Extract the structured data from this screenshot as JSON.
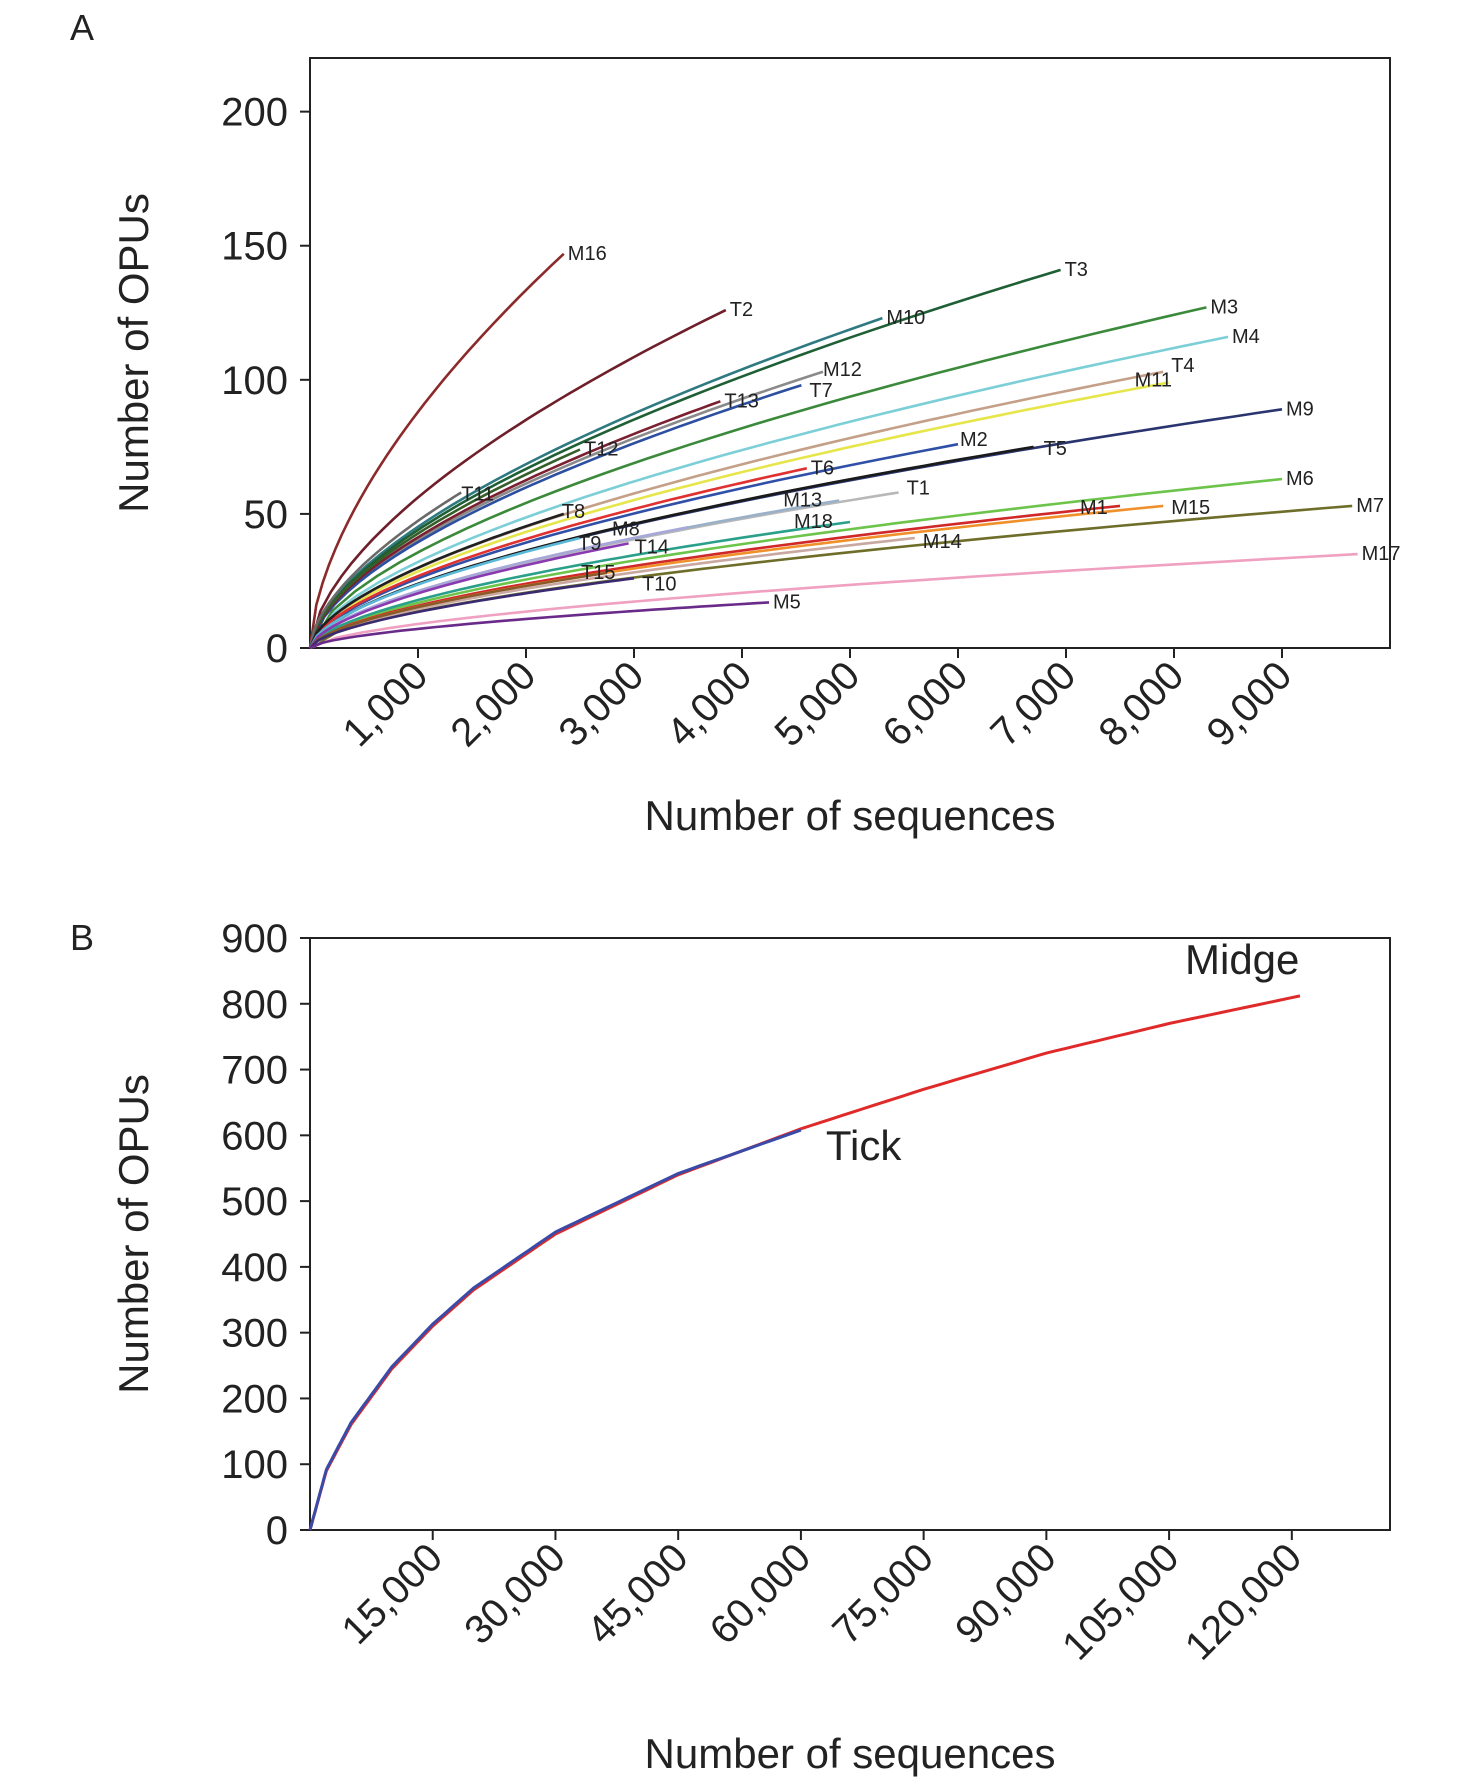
{
  "chart_data": [
    {
      "panel": "A",
      "type": "line",
      "xlabel": "Number of sequences",
      "ylabel": "Number of OPUs",
      "xlim": [
        0,
        10000
      ],
      "ylim": [
        0,
        220
      ],
      "xticks": [
        1000,
        2000,
        3000,
        4000,
        5000,
        6000,
        7000,
        8000,
        9000
      ],
      "xtick_labels": [
        "1,000",
        "2,000",
        "3,000",
        "4,000",
        "5,000",
        "6,000",
        "7,000",
        "8,000",
        "9,000"
      ],
      "yticks": [
        0,
        50,
        100,
        150,
        200
      ],
      "ytick_labels": [
        "0",
        "50",
        "100",
        "150",
        "200"
      ],
      "grid": false,
      "series": [
        {
          "name": "M16",
          "x_end": 2350,
          "y_end": 147,
          "color": "#8b2a2a"
        },
        {
          "name": "T2",
          "x_end": 3850,
          "y_end": 126,
          "color": "#6e1f2a"
        },
        {
          "name": "M10",
          "x_end": 5300,
          "y_end": 123,
          "color": "#2e7a80"
        },
        {
          "name": "T3",
          "x_end": 6950,
          "y_end": 141,
          "color": "#1f5f35"
        },
        {
          "name": "M3",
          "x_end": 8300,
          "y_end": 127,
          "color": "#3b8a3b"
        },
        {
          "name": "M4",
          "x_end": 8500,
          "y_end": 116,
          "color": "#7ccfd6"
        },
        {
          "name": "M12",
          "x_end": 4750,
          "y_end": 103,
          "color": "#8a8a8a"
        },
        {
          "name": "T7",
          "x_end": 4550,
          "y_end": 98,
          "color": "#2c4fa0"
        },
        {
          "name": "T13",
          "x_end": 3800,
          "y_end": 92,
          "color": "#7a2030"
        },
        {
          "name": "M11",
          "x_end": 7950,
          "y_end": 99,
          "color": "#e6e64a"
        },
        {
          "name": "T4",
          "x_end": 7900,
          "y_end": 103,
          "color": "#c4a088"
        },
        {
          "name": "M9",
          "x_end": 9000,
          "y_end": 89,
          "color": "#2a3570"
        },
        {
          "name": "M2",
          "x_end": 6000,
          "y_end": 76,
          "color": "#3050a8"
        },
        {
          "name": "T5",
          "x_end": 6700,
          "y_end": 75,
          "color": "#1a1a1a"
        },
        {
          "name": "T12",
          "x_end": 2500,
          "y_end": 74,
          "color": "#355f2a"
        },
        {
          "name": "T6",
          "x_end": 4600,
          "y_end": 67,
          "color": "#e03030"
        },
        {
          "name": "T11",
          "x_end": 1400,
          "y_end": 58,
          "color": "#6a6a6a"
        },
        {
          "name": "M6",
          "x_end": 9000,
          "y_end": 63,
          "color": "#6dc44a"
        },
        {
          "name": "T1",
          "x_end": 5450,
          "y_end": 58,
          "color": "#b8b8b8"
        },
        {
          "name": "M13",
          "x_end": 4900,
          "y_end": 55,
          "color": "#9ab0c8"
        },
        {
          "name": "M1",
          "x_end": 7500,
          "y_end": 53,
          "color": "#d02828"
        },
        {
          "name": "M15",
          "x_end": 7900,
          "y_end": 53,
          "color": "#f0902a"
        },
        {
          "name": "M7",
          "x_end": 9650,
          "y_end": 53,
          "color": "#6e6e2a"
        },
        {
          "name": "T8",
          "x_end": 2350,
          "y_end": 50,
          "color": "#202020"
        },
        {
          "name": "M18",
          "x_end": 5000,
          "y_end": 47,
          "color": "#2aa08a"
        },
        {
          "name": "M8",
          "x_end": 3500,
          "y_end": 45,
          "color": "#a8a8d8"
        },
        {
          "name": "M14",
          "x_end": 5600,
          "y_end": 41,
          "color": "#c8a8a0"
        },
        {
          "name": "T9",
          "x_end": 2500,
          "y_end": 41,
          "color": "#5ab8d8"
        },
        {
          "name": "T14",
          "x_end": 2950,
          "y_end": 39,
          "color": "#8a3ab0"
        },
        {
          "name": "M17",
          "x_end": 9700,
          "y_end": 35,
          "color": "#f0a0c0"
        },
        {
          "name": "T15",
          "x_end": 2750,
          "y_end": 28,
          "color": "#8a5a2a"
        },
        {
          "name": "T10",
          "x_end": 3000,
          "y_end": 26,
          "color": "#3a2a70"
        },
        {
          "name": "M5",
          "x_end": 4250,
          "y_end": 17,
          "color": "#6a2a8a"
        }
      ]
    },
    {
      "panel": "B",
      "type": "line",
      "xlabel": "Number of sequences",
      "ylabel": "Number of OPUs",
      "xlim": [
        0,
        132000
      ],
      "ylim": [
        0,
        900
      ],
      "xticks": [
        15000,
        30000,
        45000,
        60000,
        75000,
        90000,
        105000,
        120000
      ],
      "xtick_labels": [
        "15,000",
        "30,000",
        "45,000",
        "60,000",
        "75,000",
        "90,000",
        "105,000",
        "120,000"
      ],
      "yticks": [
        0,
        100,
        200,
        300,
        400,
        500,
        600,
        700,
        800,
        900
      ],
      "ytick_labels": [
        "0",
        "100",
        "200",
        "300",
        "400",
        "500",
        "600",
        "700",
        "800",
        "900"
      ],
      "grid": false,
      "series": [
        {
          "name": "Midge",
          "color": "#e02a2a",
          "x": [
            0,
            2000,
            5000,
            10000,
            15000,
            20000,
            30000,
            45000,
            60000,
            75000,
            90000,
            105000,
            121000
          ],
          "y": [
            0,
            90,
            160,
            245,
            310,
            365,
            450,
            540,
            610,
            670,
            725,
            770,
            812
          ]
        },
        {
          "name": "Tick",
          "color": "#3a4aa8",
          "x": [
            0,
            2000,
            5000,
            10000,
            15000,
            20000,
            30000,
            45000,
            60000
          ],
          "y": [
            0,
            92,
            163,
            248,
            313,
            368,
            453,
            542,
            608
          ]
        }
      ]
    }
  ],
  "panels": {
    "a": {
      "letter": "A"
    },
    "b": {
      "letter": "B"
    }
  }
}
